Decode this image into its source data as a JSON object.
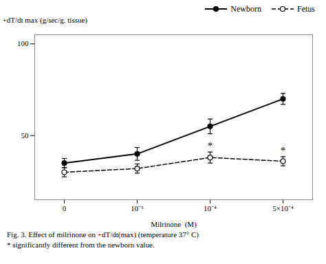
{
  "chart_data": {
    "type": "line",
    "xlabel": "Milrinone  (M)",
    "ylabel": "+dT/dt max (g/sec/g. tissue)",
    "categories": [
      "0",
      "10⁻⁵",
      "10⁻⁴",
      "5×10⁻⁴"
    ],
    "series": [
      {
        "name": "Newborn",
        "color": "#000000",
        "values": [
          35,
          40,
          55,
          70
        ],
        "errors": [
          2.5,
          3.5,
          4.0,
          3.0
        ],
        "marker": "filled",
        "line_style": "solid"
      },
      {
        "name": "Fetus",
        "color": "#000000",
        "values": [
          30,
          32,
          38,
          36
        ],
        "errors": [
          2.5,
          2.5,
          3.0,
          2.5
        ],
        "marker": "open",
        "line_style": "dashed"
      }
    ],
    "ylim": [
      15,
      105
    ],
    "yticks": [
      50,
      100
    ],
    "legend": "upper right",
    "annotations": [
      {
        "text": "*",
        "category": "10⁻⁴",
        "series": "Fetus"
      },
      {
        "text": "*",
        "category": "5×10⁻⁴",
        "series": "Fetus"
      }
    ],
    "caption": "Fig. 3.  Effect of milrinone on +dT/dt(max) (temperature 37° C)",
    "caption2": "* significantly different from the newborn value."
  }
}
